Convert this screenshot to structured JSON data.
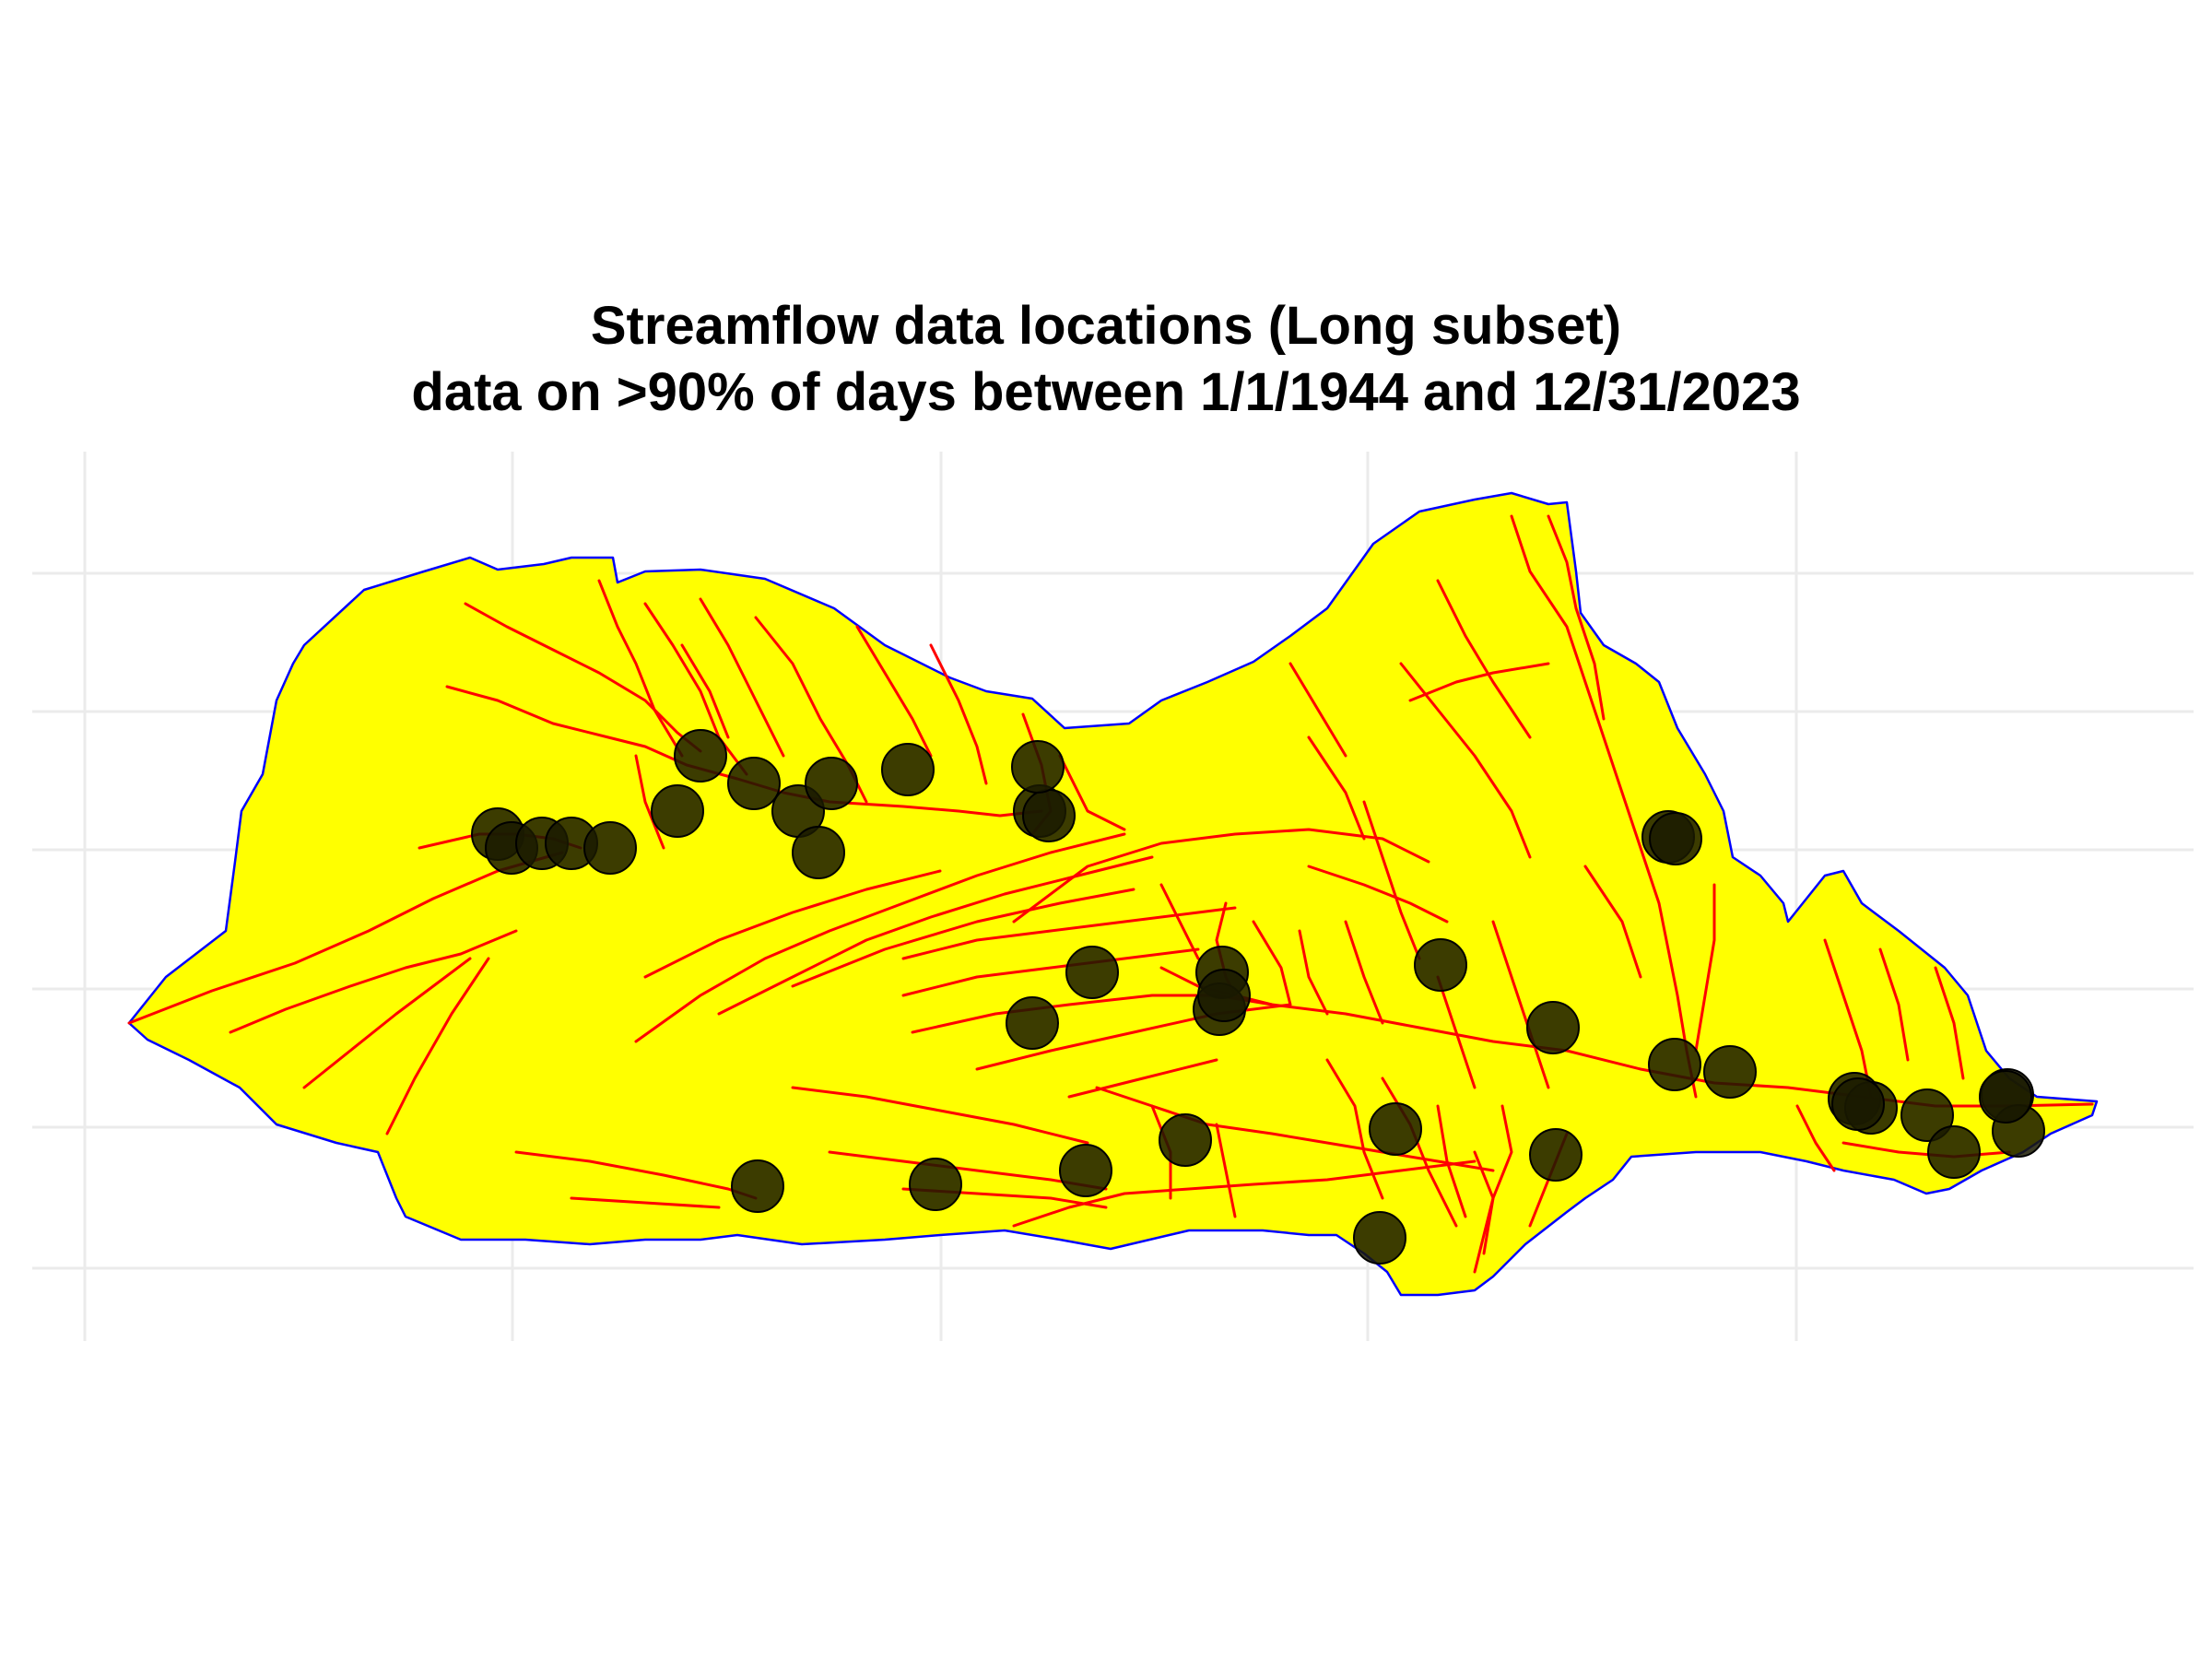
{
  "title": {
    "line1": "Streamflow data locations (Long subset)",
    "line2": "data on >90% of days between 1/1/1944 and 12/31/2023"
  },
  "colors": {
    "background": "#ffffff",
    "gridline": "#ebebeb",
    "basin_fill": "#ffff00",
    "basin_outline": "#0000ff",
    "streams": "#ff0000",
    "gauge_fill": "#1a1a00",
    "gauge_stroke": "#000000"
  },
  "map": {
    "basemap": "yellow basin polygon with blue outline",
    "streams": "red river network",
    "markers": "semi-transparent black circles at streamflow gauge locations",
    "axis_labels": "none shown",
    "legend": "none",
    "gauge_count": 41
  }
}
